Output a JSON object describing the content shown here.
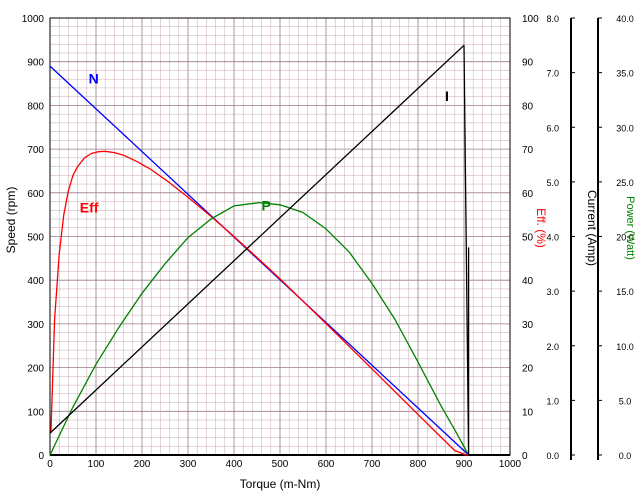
{
  "chart_data": {
    "type": "line",
    "xlabel": "Torque (m-Nm)",
    "x_ticks": [
      "0",
      "100",
      "200",
      "300",
      "400",
      "500",
      "600",
      "700",
      "800",
      "900",
      "1000"
    ],
    "xlim": [
      0,
      1000
    ],
    "grid": true,
    "colors": {
      "grid_minor": "#c9a9b0",
      "grid_major": "#9a7a8a",
      "speed": "#0000ff",
      "efficiency": "#ff0000",
      "power": "#008000",
      "current": "#000000"
    },
    "axes": [
      {
        "id": "speed",
        "label": "Speed (rpm)",
        "range": [
          0,
          1000
        ],
        "ticks": [
          "0",
          "100",
          "200",
          "300",
          "400",
          "500",
          "600",
          "700",
          "800",
          "900",
          "1000"
        ]
      },
      {
        "id": "eff",
        "label": "Eff. (%)",
        "range": [
          0,
          100
        ],
        "ticks": [
          "0",
          "10",
          "20",
          "30",
          "40",
          "50",
          "60",
          "70",
          "80",
          "90",
          "100"
        ]
      },
      {
        "id": "current",
        "label": "Current (Amp)",
        "range": [
          0,
          8
        ],
        "ticks": [
          "0.0",
          "1.0",
          "2.0",
          "3.0",
          "4.0",
          "5.0",
          "6.0",
          "7.0",
          "8.0"
        ]
      },
      {
        "id": "power",
        "label": "Power (Watt)",
        "range": [
          0,
          40
        ],
        "ticks": [
          "0.0",
          "5.0",
          "10.0",
          "15.0",
          "20.0",
          "25.0",
          "30.0",
          "35.0",
          "40.0"
        ]
      }
    ],
    "series": [
      {
        "name": "N",
        "axis": "speed",
        "color": "#0000ff",
        "x": [
          0,
          910
        ],
        "y": [
          890,
          0
        ]
      },
      {
        "name": "Eff",
        "axis": "eff",
        "color": "#ff0000",
        "x": [
          2,
          10,
          20,
          30,
          40,
          50,
          60,
          75,
          90,
          105,
          120,
          140,
          160,
          190,
          220,
          260,
          300,
          350,
          400,
          450,
          500,
          550,
          600,
          650,
          700,
          750,
          800,
          850,
          880,
          905,
          910
        ],
        "y": [
          5,
          31,
          46,
          55,
          60.5,
          64,
          66,
          68,
          69,
          69.4,
          69.5,
          69.2,
          68.6,
          67.1,
          65.3,
          62.3,
          59,
          54.6,
          50,
          45.2,
          40.3,
          35.2,
          30.1,
          24.9,
          19.7,
          14.5,
          9.3,
          4.1,
          1,
          0,
          0
        ]
      },
      {
        "name": "P",
        "axis": "power",
        "color": "#008000",
        "x": [
          0,
          50,
          100,
          150,
          200,
          250,
          300,
          350,
          400,
          455,
          500,
          550,
          600,
          650,
          700,
          750,
          800,
          850,
          880,
          910
        ],
        "y": [
          0,
          4.4,
          8.3,
          11.7,
          14.8,
          17.5,
          19.9,
          21.6,
          22.8,
          23.1,
          22.9,
          22.2,
          20.7,
          18.6,
          15.7,
          12.4,
          8.5,
          4.5,
          2.3,
          0
        ]
      },
      {
        "name": "I",
        "axis": "current",
        "color": "#000000",
        "x": [
          0,
          900,
          910,
          910
        ],
        "y": [
          0.4,
          7.5,
          0,
          3.8
        ]
      }
    ],
    "annotations": [
      {
        "text": "N",
        "color": "#0000ff",
        "x": 95,
        "axis": "speed",
        "y": 850
      },
      {
        "text": "Eff",
        "color": "#ff0000",
        "x": 85,
        "axis": "speed",
        "y": 555
      },
      {
        "text": "P",
        "color": "#008000",
        "x": 470,
        "axis": "speed",
        "y": 560
      },
      {
        "text": "I",
        "color": "#000000",
        "x": 863,
        "axis": "speed",
        "y": 810
      }
    ]
  }
}
